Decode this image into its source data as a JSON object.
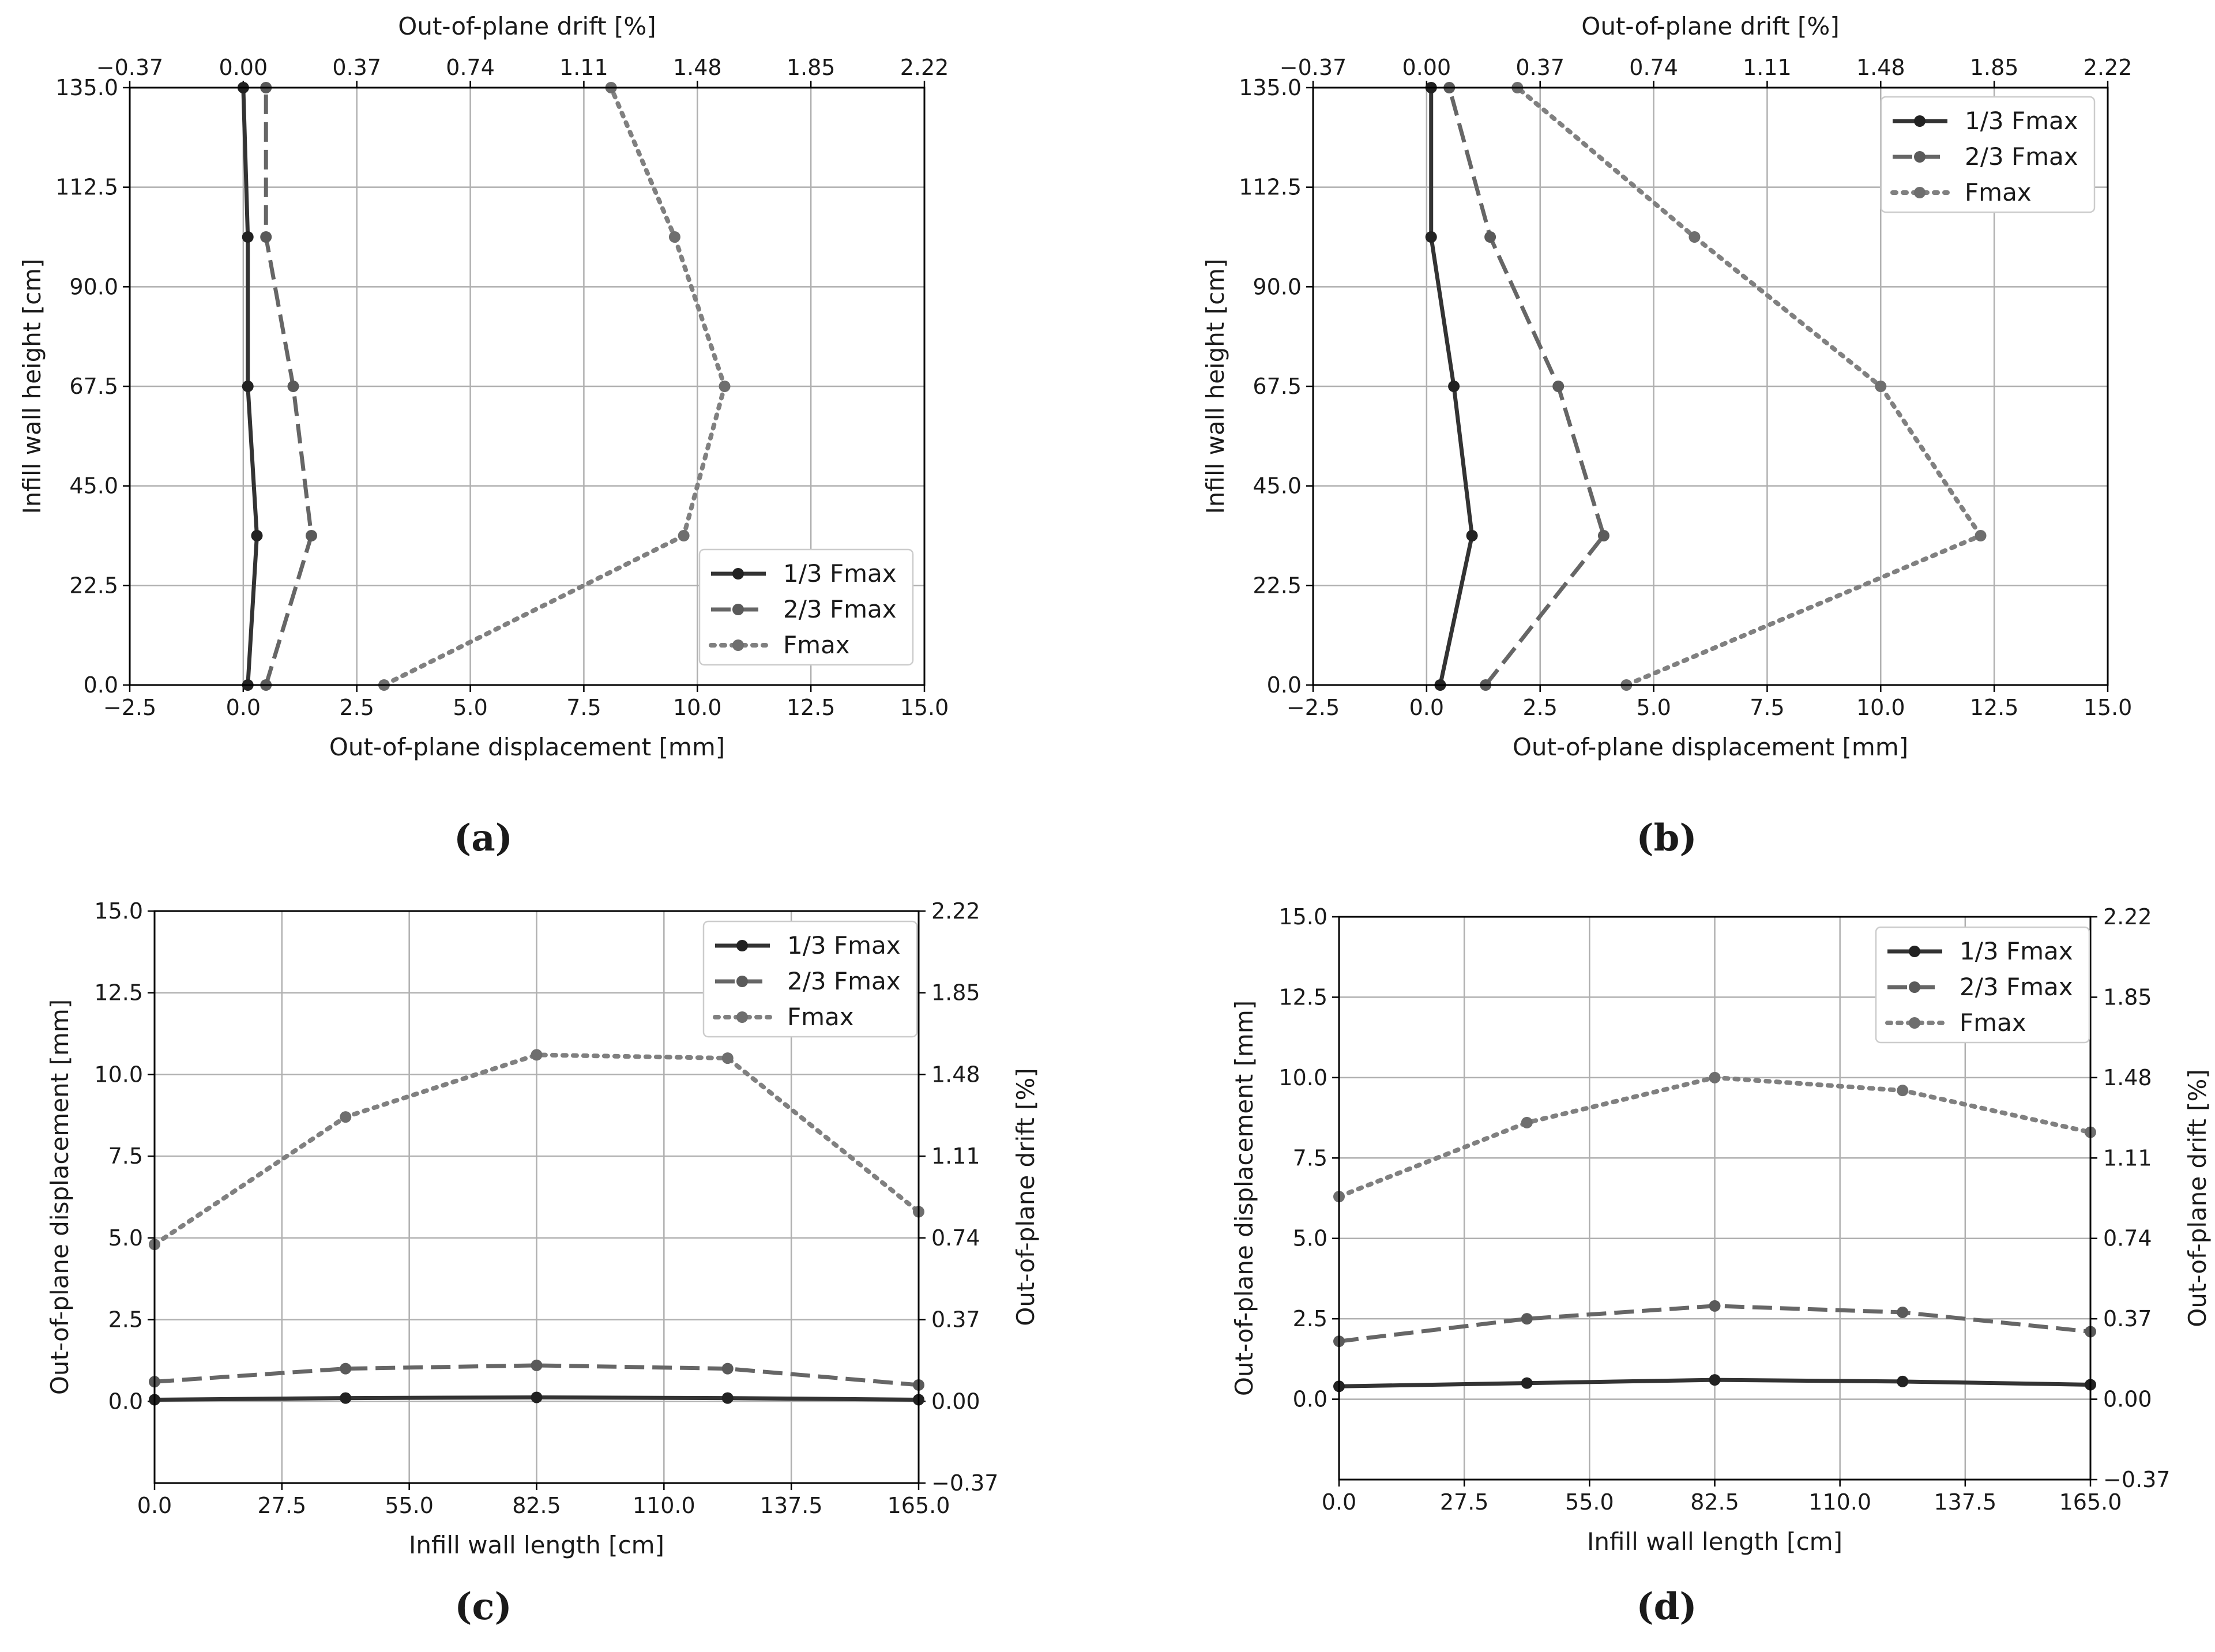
{
  "chart_data": [
    {
      "id": "a",
      "caption": "(a)",
      "type": "line",
      "orientation": "vertical-profile",
      "xlabel": "Out-of-plane displacement [mm]",
      "ylabel": "Infill wall height [cm]",
      "secondary_xlabel": "Out-of-plane drift [%]",
      "xlim": [
        -2.5,
        15.0
      ],
      "ylim": [
        0.0,
        135.0
      ],
      "x_ticks": [
        "−2.5",
        "0.0",
        "2.5",
        "5.0",
        "7.5",
        "10.0",
        "12.5",
        "15.0"
      ],
      "y_ticks": [
        "0.0",
        "22.5",
        "45.0",
        "67.5",
        "90.0",
        "112.5",
        "135.0"
      ],
      "secondary_ticks": [
        "−0.37",
        "0.00",
        "0.37",
        "0.74",
        "1.11",
        "1.48",
        "1.85",
        "2.22"
      ],
      "grid": true,
      "legend_position": "lower-right",
      "series": [
        {
          "name": "1/3 Fmax",
          "style": "solid",
          "color": "#333333",
          "marker": "#222222",
          "x": [
            0.1,
            0.3,
            0.1,
            0.1,
            0.0
          ],
          "y": [
            0.0,
            33.75,
            67.5,
            101.25,
            135.0
          ]
        },
        {
          "name": "2/3 Fmax",
          "style": "dashed",
          "color": "#666666",
          "marker": "#5a5a5a",
          "x": [
            0.5,
            1.5,
            1.1,
            0.5,
            0.5
          ],
          "y": [
            0.0,
            33.75,
            67.5,
            101.25,
            135.0
          ]
        },
        {
          "name": "Fmax",
          "style": "dotted",
          "color": "#808080",
          "marker": "#6e6e6e",
          "x": [
            3.1,
            9.7,
            10.6,
            9.5,
            8.1
          ],
          "y": [
            0.0,
            33.75,
            67.5,
            101.25,
            135.0
          ]
        }
      ]
    },
    {
      "id": "b",
      "caption": "(b)",
      "type": "line",
      "orientation": "vertical-profile",
      "xlabel": "Out-of-plane displacement [mm]",
      "ylabel": "Infill wall height [cm]",
      "secondary_xlabel": "Out-of-plane drift [%]",
      "xlim": [
        -2.5,
        15.0
      ],
      "ylim": [
        0.0,
        135.0
      ],
      "x_ticks": [
        "−2.5",
        "0.0",
        "2.5",
        "5.0",
        "7.5",
        "10.0",
        "12.5",
        "15.0"
      ],
      "y_ticks": [
        "0.0",
        "22.5",
        "45.0",
        "67.5",
        "90.0",
        "112.5",
        "135.0"
      ],
      "secondary_ticks": [
        "−0.37",
        "0.00",
        "0.37",
        "0.74",
        "1.11",
        "1.48",
        "1.85",
        "2.22"
      ],
      "grid": true,
      "legend_position": "upper-right",
      "series": [
        {
          "name": "1/3 Fmax",
          "style": "solid",
          "color": "#333333",
          "marker": "#222222",
          "x": [
            0.3,
            1.0,
            0.6,
            0.1,
            0.1
          ],
          "y": [
            0.0,
            33.75,
            67.5,
            101.25,
            135.0
          ]
        },
        {
          "name": "2/3 Fmax",
          "style": "dashed",
          "color": "#666666",
          "marker": "#5a5a5a",
          "x": [
            1.3,
            3.9,
            2.9,
            1.4,
            0.5
          ],
          "y": [
            0.0,
            33.75,
            67.5,
            101.25,
            135.0
          ]
        },
        {
          "name": "Fmax",
          "style": "dotted",
          "color": "#808080",
          "marker": "#6e6e6e",
          "x": [
            4.4,
            12.2,
            10.0,
            5.9,
            2.0
          ],
          "y": [
            0.0,
            33.75,
            67.5,
            101.25,
            135.0
          ]
        }
      ]
    },
    {
      "id": "c",
      "caption": "(c)",
      "type": "line",
      "orientation": "horizontal-profile",
      "xlabel": "Infill wall length [cm]",
      "ylabel": "Out-of-plane displacement [mm]",
      "secondary_ylabel": "Out-of-plane drift [%]",
      "xlim": [
        0.0,
        165.0
      ],
      "ylim": [
        -2.5,
        15.0
      ],
      "x_ticks": [
        "0.0",
        "27.5",
        "55.0",
        "82.5",
        "110.0",
        "137.5",
        "165.0"
      ],
      "y_ticks": [
        "0.0",
        "2.5",
        "5.0",
        "7.5",
        "10.0",
        "12.5",
        "15.0"
      ],
      "secondary_ticks": [
        "−0.37",
        "0.00",
        "0.37",
        "0.74",
        "1.11",
        "1.48",
        "1.85",
        "2.22"
      ],
      "grid": true,
      "legend_position": "upper-right",
      "series": [
        {
          "name": "1/3 Fmax",
          "style": "solid",
          "color": "#333333",
          "marker": "#222222",
          "x": [
            0.0,
            41.25,
            82.5,
            123.75,
            165.0
          ],
          "y": [
            0.05,
            0.1,
            0.12,
            0.1,
            0.05
          ]
        },
        {
          "name": "2/3 Fmax",
          "style": "dashed",
          "color": "#666666",
          "marker": "#5a5a5a",
          "x": [
            0.0,
            41.25,
            82.5,
            123.75,
            165.0
          ],
          "y": [
            0.6,
            1.0,
            1.1,
            1.0,
            0.5
          ]
        },
        {
          "name": "Fmax",
          "style": "dotted",
          "color": "#808080",
          "marker": "#6e6e6e",
          "x": [
            0.0,
            41.25,
            82.5,
            123.75,
            165.0
          ],
          "y": [
            4.8,
            8.7,
            10.6,
            10.5,
            5.8
          ]
        }
      ]
    },
    {
      "id": "d",
      "caption": "(d)",
      "type": "line",
      "orientation": "horizontal-profile",
      "xlabel": "Infill wall length [cm]",
      "ylabel": "Out-of-plane displacement [mm]",
      "secondary_ylabel": "Out-of-plane drift [%]",
      "xlim": [
        0.0,
        165.0
      ],
      "ylim": [
        -2.5,
        15.0
      ],
      "x_ticks": [
        "0.0",
        "27.5",
        "55.0",
        "82.5",
        "110.0",
        "137.5",
        "165.0"
      ],
      "y_ticks": [
        "0.0",
        "2.5",
        "5.0",
        "7.5",
        "10.0",
        "12.5",
        "15.0"
      ],
      "secondary_ticks": [
        "−0.37",
        "0.00",
        "0.37",
        "0.74",
        "1.11",
        "1.48",
        "1.85",
        "2.22"
      ],
      "grid": true,
      "legend_position": "upper-right",
      "series": [
        {
          "name": "1/3 Fmax",
          "style": "solid",
          "color": "#333333",
          "marker": "#222222",
          "x": [
            0.0,
            41.25,
            82.5,
            123.75,
            165.0
          ],
          "y": [
            0.4,
            0.5,
            0.6,
            0.55,
            0.45
          ]
        },
        {
          "name": "2/3 Fmax",
          "style": "dashed",
          "color": "#666666",
          "marker": "#5a5a5a",
          "x": [
            0.0,
            41.25,
            82.5,
            123.75,
            165.0
          ],
          "y": [
            1.8,
            2.5,
            2.9,
            2.7,
            2.1
          ]
        },
        {
          "name": "Fmax",
          "style": "dotted",
          "color": "#808080",
          "marker": "#6e6e6e",
          "x": [
            0.0,
            41.25,
            82.5,
            123.75,
            165.0
          ],
          "y": [
            6.3,
            8.6,
            10.0,
            9.6,
            8.3
          ]
        }
      ]
    }
  ]
}
